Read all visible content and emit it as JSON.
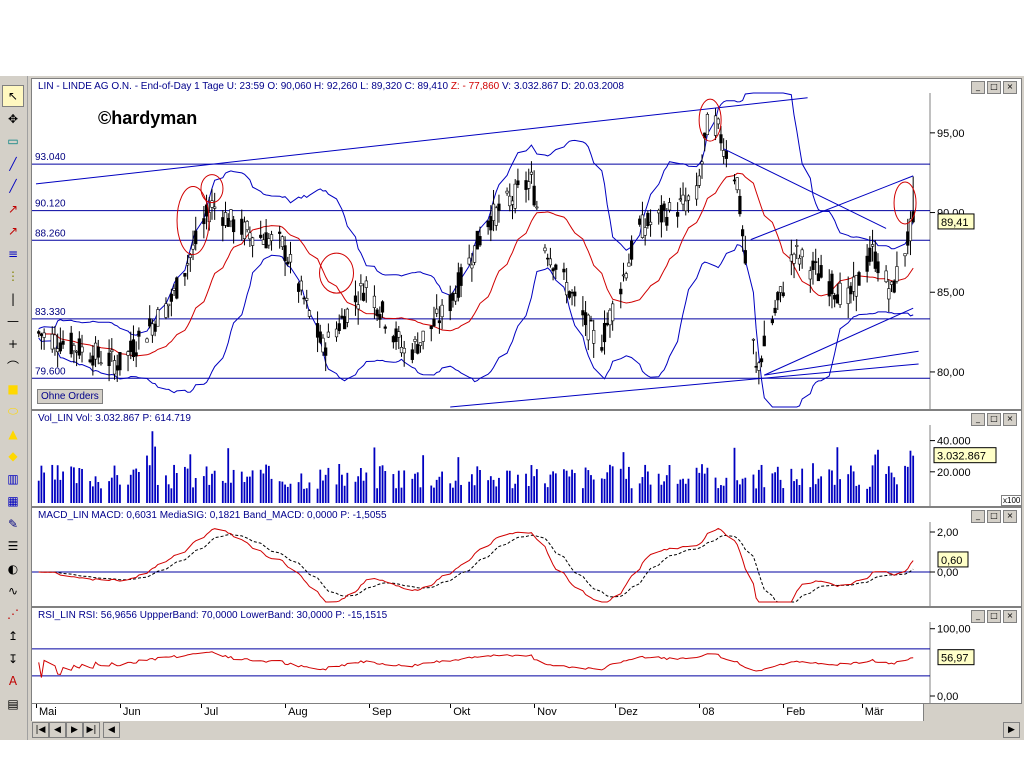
{
  "app": {
    "watermark": "©hardyman",
    "ohne_orders": "Ohne Orders",
    "x100": "x100"
  },
  "price_pane": {
    "title_parts": [
      {
        "text": "LIN - LINDE AG O.N. - End-of-Day 1 Tage  U: 23:59  O: 90,060  H: 92,260  L: 89,320  C: 89,410 ",
        "color": "#00008b"
      },
      {
        "text": "Z: - 77,860",
        "color": "#d00000"
      },
      {
        "text": "  V: 3.032.867  D: 20.03.2008",
        "color": "#00008b"
      }
    ],
    "y_ticks": [
      "95,00",
      "90,00",
      "85,00",
      "80,00"
    ],
    "hline_labels": [
      "93.040",
      "90.120",
      "88.260",
      "83.330",
      "79.600"
    ],
    "last_value": "89,41"
  },
  "volume_pane": {
    "title": "Vol_LIN  Vol: 3.032.867  P: 614.719",
    "y_ticks": [
      "40.000",
      "20.000"
    ],
    "last_value": "3.032.867"
  },
  "macd_pane": {
    "title": "MACD_LIN  MACD: 0,6031  MediaSIG: 0,1821  Band_MACD: 0,0000  P: -1,5055",
    "y_ticks": [
      "2,00",
      "0,00"
    ],
    "last_value": "0,60"
  },
  "rsi_pane": {
    "title": "RSI_LIN  RSI: 56,9656  UppperBand: 70,0000  LowerBand: 30,0000  P: -15,1515",
    "y_ticks": [
      "100,00",
      "0,00"
    ],
    "last_value": "56,97"
  },
  "x_axis": {
    "labels": [
      "Mai",
      "Jun",
      "Jul",
      "Aug",
      "Sep",
      "Okt",
      "Nov",
      "Dez",
      "08",
      "Feb",
      "Mär"
    ]
  },
  "toolbar": {
    "icons": [
      "cursor-icon",
      "crosshair-icon",
      "rect-icon",
      "line-icon",
      "line-icon",
      "ray-icon",
      "ray-icon",
      "channel-icon",
      "fib-icon",
      "vline-icon",
      "hline-icon",
      "cross-icon",
      "arc-icon",
      "square-icon",
      "ellipse-icon",
      "triangle-icon",
      "diamond-icon",
      "split-icon",
      "grid-icon",
      "pen-icon",
      "list-icon",
      "gauge-icon",
      "wave-icon",
      "fan-icon",
      "up-arrow-icon",
      "down-arrow-icon",
      "text-icon",
      "bars-icon"
    ]
  },
  "chart_data": [
    {
      "type": "candlestick",
      "title": "LIN - LINDE AG O.N. - End-of-Day 1 Tage",
      "x_range": [
        "2007-05",
        "2008-03-20"
      ],
      "ylim": [
        77.8,
        97.5
      ],
      "key_points": [
        {
          "date": "2007-05",
          "close": 82.5
        },
        {
          "date": "2007-06-01",
          "close": 80.5
        },
        {
          "date": "2007-06-20",
          "close": 84.5
        },
        {
          "date": "2007-07-05",
          "close": 90.5
        },
        {
          "date": "2007-07-15",
          "close": 89.0
        },
        {
          "date": "2007-07-31",
          "close": 88.0
        },
        {
          "date": "2007-08-15",
          "close": 81.5
        },
        {
          "date": "2007-08-31",
          "close": 85.5
        },
        {
          "date": "2007-09-15",
          "close": 81.0
        },
        {
          "date": "2007-09-30",
          "close": 84.0
        },
        {
          "date": "2007-10-15",
          "close": 89.5
        },
        {
          "date": "2007-10-31",
          "close": 92.0
        },
        {
          "date": "2007-11-05",
          "close": 88.0
        },
        {
          "date": "2007-11-25",
          "close": 81.5
        },
        {
          "date": "2007-12-10",
          "close": 89.0
        },
        {
          "date": "2007-12-31",
          "close": 91.0
        },
        {
          "date": "2008-01-05",
          "close": 96.5
        },
        {
          "date": "2008-01-15",
          "close": 92.0
        },
        {
          "date": "2008-01-22",
          "close": 80.0
        },
        {
          "date": "2008-02-05",
          "close": 87.5
        },
        {
          "date": "2008-02-25",
          "close": 84.5
        },
        {
          "date": "2008-03-05",
          "close": 87.5
        },
        {
          "date": "2008-03-12",
          "close": 85.0
        },
        {
          "date": "2008-03-20",
          "close": 89.41
        }
      ],
      "horizontal_lines": [
        93.04,
        90.12,
        88.26,
        83.33,
        79.6
      ],
      "overlays": [
        "Bollinger upper (blue)",
        "Bollinger lower (blue)",
        "moving average (red)"
      ],
      "last": {
        "open": 90.06,
        "high": 92.26,
        "low": 89.32,
        "close": 89.41
      }
    },
    {
      "type": "bar",
      "title": "Vol_LIN",
      "ylim": [
        0,
        50000
      ],
      "note": "daily volume, values in x100",
      "last": 30328.67
    },
    {
      "type": "line",
      "title": "MACD_LIN",
      "series": [
        {
          "name": "MACD",
          "last": 0.6031
        },
        {
          "name": "MediaSIG",
          "last": 0.1821
        }
      ],
      "ylim": [
        -1.5,
        2.5
      ],
      "band": 0.0
    },
    {
      "type": "line",
      "title": "RSI_LIN",
      "series": [
        {
          "name": "RSI",
          "last": 56.9656
        }
      ],
      "bands": [
        70,
        30
      ],
      "ylim": [
        0,
        110
      ]
    }
  ]
}
